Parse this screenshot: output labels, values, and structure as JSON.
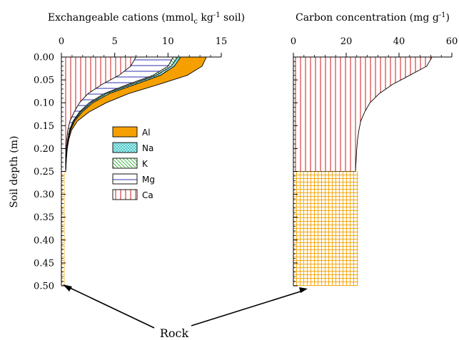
{
  "chart_data": [
    {
      "type": "area",
      "title": "Exchangeable cations (mmol",
      "title_sub": "c",
      "title_mid": " kg",
      "title_sup": "-1",
      "title_end": " soil)",
      "xlim": [
        0,
        15
      ],
      "x_ticks": [
        "0",
        "5",
        "10",
        "15"
      ],
      "ylim": [
        0,
        0.5
      ],
      "y_ticks": [
        "0.00",
        "0.05",
        "0.10",
        "0.15",
        "0.20",
        "0.25",
        "0.30",
        "0.35",
        "0.40",
        "0.45",
        "0.50"
      ],
      "ylabel": "Soil depth (m)",
      "stacked": true,
      "legend_placement": "center",
      "depth": [
        0.0,
        0.02,
        0.04,
        0.06,
        0.08,
        0.1,
        0.12,
        0.14,
        0.16,
        0.18,
        0.2,
        0.22,
        0.25
      ],
      "series": [
        {
          "name": "Ca",
          "cumulative": [
            7.0,
            6.5,
            5.4,
            3.8,
            2.5,
            1.7,
            1.2,
            0.8,
            0.6,
            0.5,
            0.45,
            0.4,
            0.4
          ],
          "fill": "#ffffff",
          "pattern": "vertical-lines",
          "color": "#cc0000"
        },
        {
          "name": "Mg",
          "cumulative": [
            10.5,
            10.0,
            8.6,
            6.2,
            4.0,
            2.6,
            1.7,
            1.1,
            0.75,
            0.6,
            0.5,
            0.45,
            0.4
          ],
          "fill": "#ffffff",
          "pattern": "horizontal-lines",
          "color": "#1a1aaa"
        },
        {
          "name": "K",
          "cumulative": [
            10.9,
            10.3,
            8.9,
            6.5,
            4.2,
            2.75,
            1.8,
            1.15,
            0.8,
            0.62,
            0.52,
            0.46,
            0.4
          ],
          "fill": "#ffffff",
          "pattern": "diagonal-lines",
          "color": "#22aa22"
        },
        {
          "name": "Na",
          "cumulative": [
            11.2,
            10.6,
            9.3,
            6.9,
            4.5,
            2.95,
            1.95,
            1.25,
            0.85,
            0.65,
            0.54,
            0.47,
            0.4
          ],
          "fill": "#aef0f0",
          "pattern": "crosshatch",
          "color": "#009999"
        },
        {
          "name": "Al",
          "cumulative": [
            13.6,
            13.2,
            11.8,
            9.1,
            6.3,
            4.2,
            2.6,
            1.5,
            0.95,
            0.7,
            0.55,
            0.48,
            0.4
          ],
          "fill": "#f5a000",
          "pattern": "solid",
          "color": "#f5a000"
        }
      ],
      "rock": {
        "from_depth": 0.25,
        "to_depth": 0.5,
        "value": 0.3,
        "pattern": "grid",
        "color": "#f5a000"
      }
    },
    {
      "type": "area",
      "title": "Carbon concentration (mg g",
      "title_sup": "-1",
      "title_end": ")",
      "xlim": [
        0,
        60
      ],
      "x_ticks": [
        "0",
        "20",
        "40",
        "60"
      ],
      "ylim": [
        0,
        0.5
      ],
      "depth": [
        0.0,
        0.02,
        0.04,
        0.06,
        0.08,
        0.1,
        0.12,
        0.14,
        0.16,
        0.18,
        0.2,
        0.22,
        0.25
      ],
      "series": [
        {
          "name": "Carbon",
          "values": [
            52.5,
            50.5,
            44.0,
            37.5,
            32.5,
            29.0,
            27.0,
            25.5,
            24.8,
            24.3,
            24.0,
            23.8,
            23.5
          ],
          "pattern": "vertical-lines",
          "color": "#cc0000"
        }
      ],
      "rock": {
        "from_depth": 0.25,
        "to_depth": 0.5,
        "value": 24.5,
        "pattern": "grid",
        "color": "#f5a000"
      }
    }
  ],
  "annotation": {
    "text": "Rock"
  }
}
